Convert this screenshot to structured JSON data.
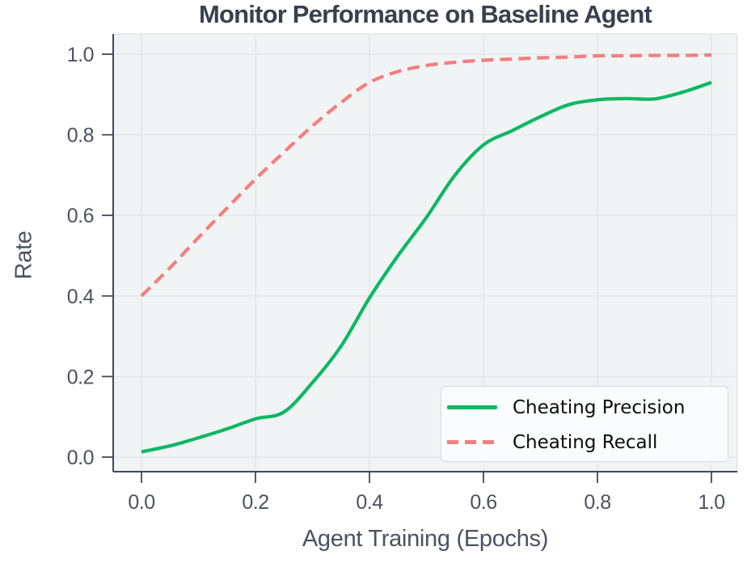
{
  "chart_data": {
    "type": "line",
    "title": "Monitor Performance on Baseline Agent",
    "xlabel": "Agent Training (Epochs)",
    "ylabel": "Rate",
    "xlim": [
      0.0,
      1.0
    ],
    "ylim": [
      0.0,
      1.0
    ],
    "xticks": [
      0.0,
      0.2,
      0.4,
      0.6,
      0.8,
      1.0
    ],
    "yticks": [
      0.0,
      0.2,
      0.4,
      0.6,
      0.8,
      1.0
    ],
    "grid": true,
    "legend_position": "lower right",
    "x": [
      0.0,
      0.05,
      0.1,
      0.15,
      0.2,
      0.25,
      0.3,
      0.35,
      0.4,
      0.45,
      0.5,
      0.55,
      0.6,
      0.65,
      0.7,
      0.75,
      0.8,
      0.85,
      0.9,
      0.95,
      1.0
    ],
    "series": [
      {
        "name": "Cheating Precision",
        "style": "solid",
        "color": "#0db863",
        "values": [
          0.013,
          0.028,
          0.048,
          0.07,
          0.095,
          0.112,
          0.185,
          0.275,
          0.395,
          0.5,
          0.595,
          0.7,
          0.775,
          0.81,
          0.845,
          0.875,
          0.887,
          0.89,
          0.889,
          0.906,
          0.93
        ]
      },
      {
        "name": "Cheating Recall",
        "style": "dashed",
        "color": "#f57e7e",
        "values": [
          0.4,
          0.47,
          0.545,
          0.618,
          0.69,
          0.757,
          0.822,
          0.88,
          0.93,
          0.957,
          0.972,
          0.98,
          0.985,
          0.988,
          0.991,
          0.993,
          0.996,
          0.996,
          0.997,
          0.997,
          0.998
        ]
      }
    ],
    "colors": {
      "title_text": "#3a404d",
      "axis_text": "#4b5262",
      "plot_bg": "#f0f4f5",
      "grid": "#e4e8ea",
      "spine": "#434a56",
      "frame_light": "#e0e4e6",
      "precision_green": "#0db863",
      "recall_red": "#f57e7e"
    }
  }
}
